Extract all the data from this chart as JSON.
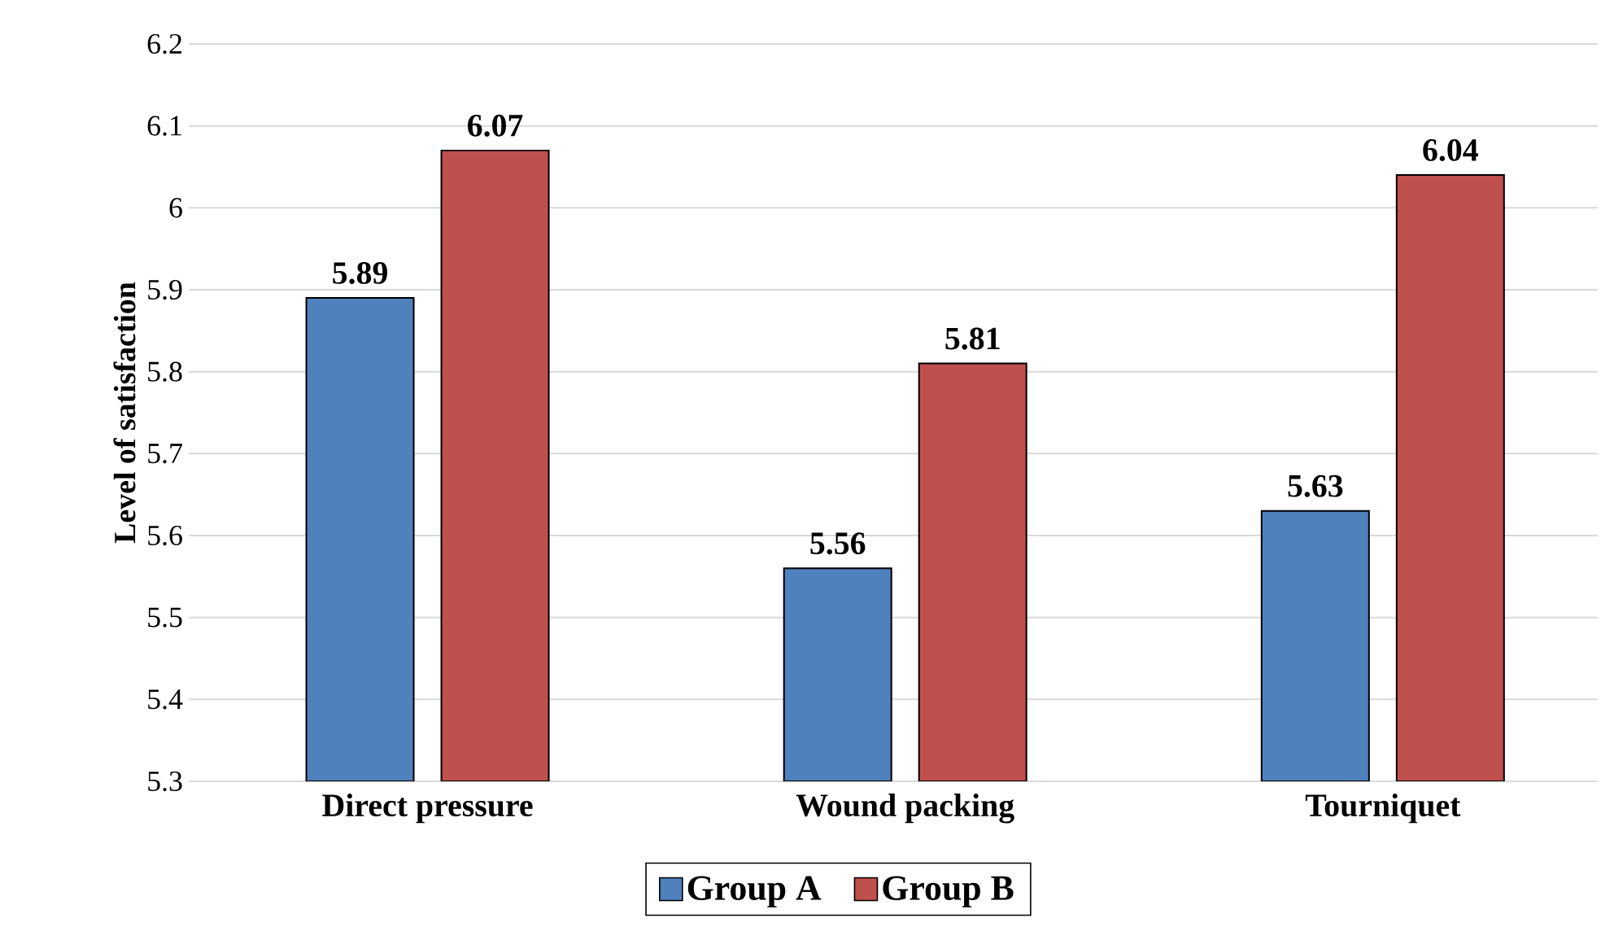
{
  "chart_data": {
    "type": "bar",
    "ylabel": "Level of satisfaction",
    "categories": [
      "Direct pressure",
      "Wound packing",
      "Tourniquet"
    ],
    "series": [
      {
        "name": "Group A",
        "color": "#4f81bd",
        "values": [
          5.89,
          5.56,
          5.63
        ]
      },
      {
        "name": "Group B",
        "color": "#c0504d",
        "values": [
          6.07,
          5.81,
          6.04
        ]
      }
    ],
    "ylim": [
      5.3,
      6.2
    ],
    "yticks": [
      5.3,
      5.4,
      5.5,
      5.6,
      5.7,
      5.8,
      5.9,
      6,
      6.1,
      6.2
    ],
    "grid": "y",
    "legend": "bottom",
    "data_labels": true
  }
}
